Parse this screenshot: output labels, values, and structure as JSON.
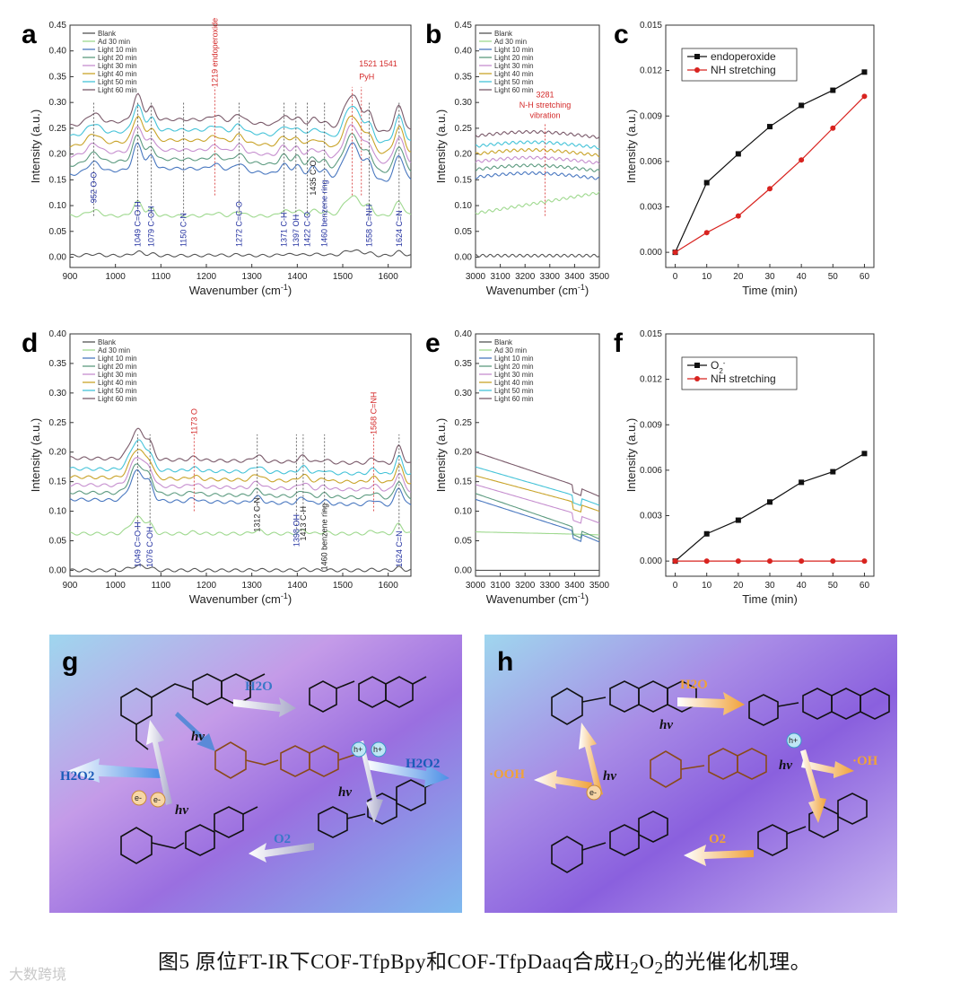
{
  "caption": {
    "prefix": "图5 原位FT-IR下COF-TfpBpy和COF-TfpDaaq合成H",
    "sub1": "2",
    "mid": "O",
    "sub2": "2",
    "suffix": "的光催化机理。"
  },
  "watermark": "大数跨境",
  "colors": {
    "blank": "#555555",
    "ad30": "#9fd98f",
    "l10": "#4a78c0",
    "l20": "#5d9b80",
    "l30": "#c68fcf",
    "l40": "#c9a42a",
    "l50": "#45c3d8",
    "l60": "#7a5a6a",
    "black_series": "#111111",
    "red_series": "#d8231f",
    "annot_blue": "#2230a0",
    "annot_red": "#d42a2a"
  },
  "chart_data": [
    {
      "id": "a",
      "type": "line",
      "letter": "a",
      "xlabel": "Wavenumber (cm",
      "xlabel_sup": "-1",
      "xlabel_end": ")",
      "ylabel": "Intensity (a.u.)",
      "xlim": [
        900,
        1650
      ],
      "ylim": [
        -0.02,
        0.45
      ],
      "xticks": [
        900,
        1000,
        1100,
        1200,
        1300,
        1400,
        1500,
        1600
      ],
      "yticks": [
        0.0,
        0.05,
        0.1,
        0.15,
        0.2,
        0.25,
        0.3,
        0.35,
        0.4,
        0.45
      ],
      "legend": [
        "Blank",
        "Ad 30 min",
        "Light 10 min",
        "Light 20 min",
        "Light 30 min",
        "Light 40 min",
        "Light 50 min",
        "Light 60 min"
      ],
      "offsets": [
        0.003,
        0.08,
        0.16,
        0.178,
        0.196,
        0.215,
        0.235,
        0.255
      ],
      "peaks": [
        [
          952,
          0.02,
          14
        ],
        [
          1049,
          0.05,
          10
        ],
        [
          1079,
          0.025,
          8
        ],
        [
          1220,
          0.01,
          12
        ],
        [
          1272,
          0.015,
          10
        ],
        [
          1371,
          0.02,
          10
        ],
        [
          1400,
          0.02,
          9
        ],
        [
          1435,
          0.02,
          10
        ],
        [
          1460,
          0.015,
          8
        ],
        [
          1521,
          0.07,
          18
        ],
        [
          1558,
          0.03,
          9
        ],
        [
          1624,
          0.05,
          10
        ]
      ],
      "dashed_blue": [
        952,
        1049,
        1079,
        1150,
        1272,
        1371,
        1397,
        1422,
        1460,
        1558,
        1624
      ],
      "dashed_red": [
        1219,
        1521,
        1541
      ],
      "labels_blue": [
        {
          "text": "952 O-O",
          "x": 952,
          "y": 0.105
        },
        {
          "text": "1049 C=O-H",
          "x": 1049,
          "y": 0.02
        },
        {
          "text": "1079 C-OH",
          "x": 1079,
          "y": 0.02
        },
        {
          "text": "1150 C-N",
          "x": 1150,
          "y": 0.02
        },
        {
          "text": "1272 C=C-O",
          "x": 1272,
          "y": 0.02
        },
        {
          "text": "1371 C-H",
          "x": 1371,
          "y": 0.02
        },
        {
          "text": "1397 OH",
          "x": 1397,
          "y": 0.02
        },
        {
          "text": "1422 C-O",
          "x": 1422,
          "y": 0.02
        },
        {
          "text": "1460 benzene ring",
          "x": 1460,
          "y": 0.02
        },
        {
          "text": "1558 C=NH",
          "x": 1558,
          "y": 0.02
        },
        {
          "text": "1624 C=N",
          "x": 1624,
          "y": 0.02
        }
      ],
      "labels_black": [
        {
          "text": "1435 C-O",
          "x": 1435,
          "y": 0.12
        }
      ],
      "labels_red": [
        {
          "text": "1219 endoperoxide",
          "x": 1219,
          "y": 0.33,
          "rot": true
        },
        {
          "text": "1521 1541",
          "x": 1530,
          "y": 0.37,
          "rot": false
        },
        {
          "text": "PyH",
          "x": 1530,
          "y": 0.345,
          "rot": false
        }
      ]
    },
    {
      "id": "b",
      "type": "line",
      "letter": "b",
      "xlabel": "Wavenumber (cm",
      "xlabel_sup": "-1",
      "xlabel_end": ")",
      "ylabel": "Intensity (a.u.)",
      "xlim": [
        3000,
        3500
      ],
      "ylim": [
        -0.02,
        0.45
      ],
      "xticks": [
        3000,
        3100,
        3200,
        3300,
        3400,
        3500
      ],
      "yticks": [
        0.0,
        0.05,
        0.1,
        0.15,
        0.2,
        0.25,
        0.3,
        0.35,
        0.4,
        0.45
      ],
      "legend": [
        "Blank",
        "Ad 30 min",
        "Light 10 min",
        "Light 20 min",
        "Light 30 min",
        "Light 40 min",
        "Light 50 min",
        "Light 60 min"
      ],
      "offsets": [
        0.003,
        0.085,
        0.155,
        0.17,
        0.185,
        0.2,
        0.215,
        0.235
      ],
      "dashed_red": [
        3281
      ],
      "labels_red": [
        {
          "text": "3281",
          "x": 3281,
          "y": 0.31
        },
        {
          "text": "N-H stretching",
          "x": 3281,
          "y": 0.29
        },
        {
          "text": "vibration",
          "x": 3281,
          "y": 0.27
        }
      ]
    },
    {
      "id": "c",
      "type": "line",
      "letter": "c",
      "xlabel": "Time (min)",
      "ylabel": "Intensity (a.u.)",
      "xlim": [
        -3,
        63
      ],
      "ylim": [
        -0.001,
        0.015
      ],
      "xticks": [
        0,
        10,
        20,
        30,
        40,
        50,
        60
      ],
      "yticks": [
        "0.000",
        "0.003",
        "0.006",
        "0.009",
        "0.012",
        "0.015"
      ],
      "x": [
        0,
        10,
        20,
        30,
        40,
        50,
        60
      ],
      "series": [
        {
          "name": "endoperoxide",
          "values": [
            0,
            0.0046,
            0.0065,
            0.0083,
            0.0097,
            0.0107,
            0.0119
          ],
          "marker": "square"
        },
        {
          "name": "NH stretching",
          "values": [
            0,
            0.0013,
            0.0024,
            0.0042,
            0.0061,
            0.0082,
            0.0103
          ],
          "marker": "circle"
        }
      ]
    },
    {
      "id": "d",
      "type": "line",
      "letter": "d",
      "xlabel": "Wavenumber (cm",
      "xlabel_sup": "-1",
      "xlabel_end": ")",
      "ylabel": "Intensity (a.u.)",
      "xlim": [
        900,
        1650
      ],
      "ylim": [
        -0.01,
        0.4
      ],
      "xticks": [
        900,
        1000,
        1100,
        1200,
        1300,
        1400,
        1500,
        1600
      ],
      "yticks": [
        0.0,
        0.05,
        0.1,
        0.15,
        0.2,
        0.25,
        0.3,
        0.35,
        0.4
      ],
      "legend": [
        "Blank",
        "Ad 30 min",
        "Light 10 min",
        "Light 20 min",
        "Light 30 min",
        "Light 40 min",
        "Light 50 min",
        "Light 60 min"
      ],
      "offsets": [
        0.0,
        0.062,
        0.12,
        0.132,
        0.145,
        0.158,
        0.172,
        0.19
      ],
      "peaks": [
        [
          1049,
          0.05,
          16
        ],
        [
          1076,
          0.02,
          8
        ],
        [
          1173,
          0.005,
          10
        ],
        [
          1312,
          0.01,
          10
        ],
        [
          1413,
          0.01,
          10
        ],
        [
          1460,
          0.005,
          8
        ],
        [
          1568,
          0.008,
          10
        ],
        [
          1624,
          0.03,
          8
        ]
      ],
      "dashed_blue": [
        1049,
        1076,
        1398,
        1624
      ],
      "dashed_red": [
        1173,
        1568
      ],
      "dashed_black": [
        1312,
        1413,
        1460
      ],
      "labels_blue": [
        {
          "text": "1049 C=O-H",
          "x": 1049,
          "y": 0.005
        },
        {
          "text": "1076 C-OH",
          "x": 1076,
          "y": 0.005
        },
        {
          "text": "1398 OH",
          "x": 1398,
          "y": 0.04
        },
        {
          "text": "1624 C=N",
          "x": 1624,
          "y": 0.005
        }
      ],
      "labels_black": [
        {
          "text": "1312 C-N",
          "x": 1312,
          "y": 0.065
        },
        {
          "text": "1413 C-H",
          "x": 1413,
          "y": 0.05
        },
        {
          "text": "1460 benzene ring",
          "x": 1460,
          "y": 0.0
        }
      ],
      "labels_red": [
        {
          "text": "1173 O",
          "x": 1173,
          "y": 0.23,
          "rot": true
        },
        {
          "text": "1568 C=NH",
          "x": 1568,
          "y": 0.23,
          "rot": true
        }
      ]
    },
    {
      "id": "e",
      "type": "line",
      "letter": "e",
      "xlabel": "Wavenumber (cm",
      "xlabel_sup": "-1",
      "xlabel_end": ")",
      "ylabel": "Intensity (a.u.)",
      "xlim": [
        3000,
        3500
      ],
      "ylim": [
        -0.01,
        0.4
      ],
      "xticks": [
        3000,
        3100,
        3200,
        3300,
        3400,
        3500
      ],
      "yticks": [
        0.0,
        0.05,
        0.1,
        0.15,
        0.2,
        0.25,
        0.3,
        0.35,
        0.4
      ],
      "legend": [
        "Blank",
        "Ad 30 min",
        "Light 10 min",
        "Light 20 min",
        "Light 30 min",
        "Light 40 min",
        "Light 50 min",
        "Light 60 min"
      ],
      "start": [
        0.0,
        0.065,
        0.12,
        0.13,
        0.145,
        0.16,
        0.175,
        0.2
      ],
      "end": [
        0.0,
        0.06,
        0.048,
        0.053,
        0.08,
        0.1,
        0.11,
        0.125
      ]
    },
    {
      "id": "f",
      "type": "line",
      "letter": "f",
      "xlabel": "Time (min)",
      "ylabel": "Intensity (a.u.)",
      "xlim": [
        -3,
        63
      ],
      "ylim": [
        -0.001,
        0.015
      ],
      "xticks": [
        0,
        10,
        20,
        30,
        40,
        50,
        60
      ],
      "yticks": [
        "0.000",
        "0.003",
        "0.006",
        "0.009",
        "0.012",
        "0.015"
      ],
      "x": [
        0,
        10,
        20,
        30,
        40,
        50,
        60
      ],
      "series": [
        {
          "name": "O",
          "name_sup": "2",
          "name_sup2": "-",
          "values": [
            0,
            0.0018,
            0.0027,
            0.0039,
            0.0052,
            0.0059,
            0.0071
          ],
          "marker": "square"
        },
        {
          "name": "NH stretching",
          "values": [
            0,
            0,
            0,
            0,
            0,
            0,
            0
          ],
          "marker": "circle"
        }
      ]
    }
  ],
  "scheme_g": {
    "letter": "g",
    "labels": [
      "H2O",
      "hν",
      "hν",
      "hν",
      "H2O2",
      "H2O2",
      "O2"
    ],
    "charges": [
      "h+",
      "h+",
      "e-",
      "e-"
    ]
  },
  "scheme_h": {
    "letter": "h",
    "labels": [
      "H2O",
      "hν",
      "hν",
      "hν",
      "·OOH",
      "·OH",
      "O2"
    ],
    "charges": [
      "h+",
      "e-"
    ]
  }
}
